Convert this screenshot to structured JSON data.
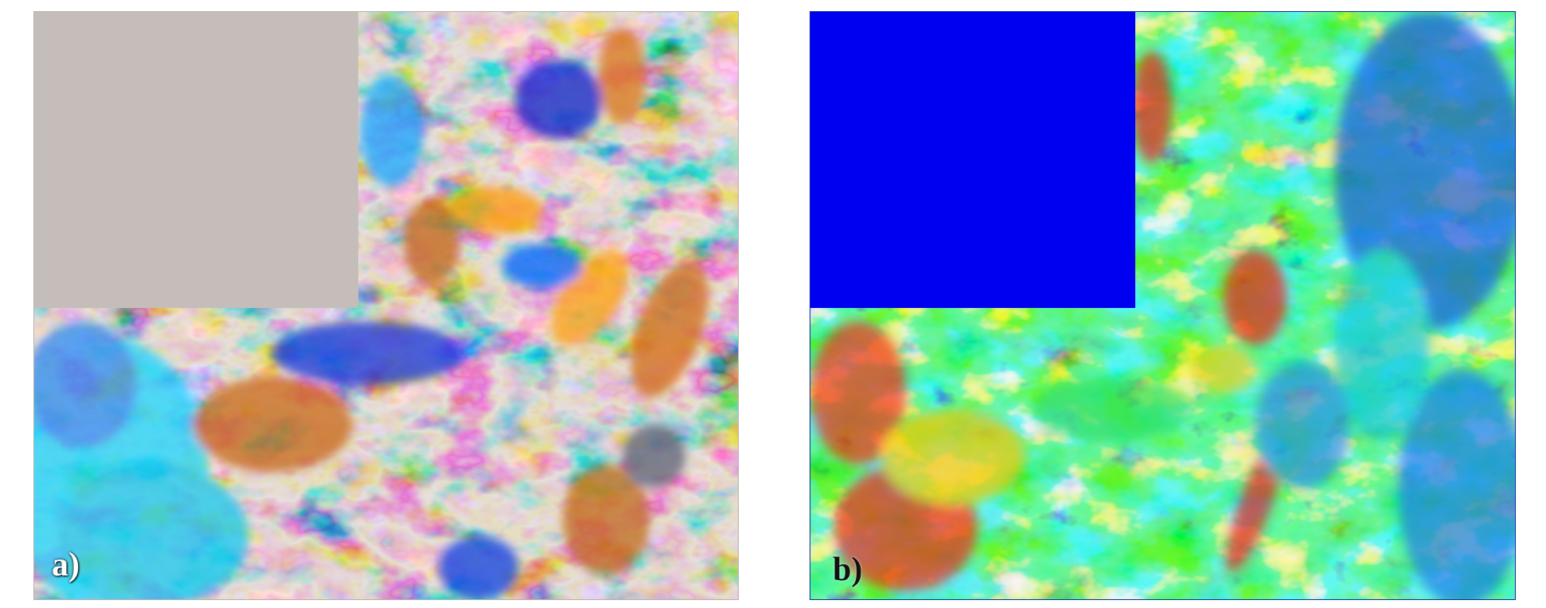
{
  "panels": [
    {
      "id": "a",
      "label": "a)",
      "colormap": [
        "#00e0ff",
        "#0a2fd8",
        "#6b6f84",
        "#c9c0bb",
        "#c8701c",
        "#ffb000"
      ]
    },
    {
      "id": "b",
      "label": "b)",
      "colormap": [
        "#0000ff",
        "#2a7be6",
        "#15d8c8",
        "#2ee84a",
        "#f5f000",
        "#e81a10"
      ]
    }
  ]
}
